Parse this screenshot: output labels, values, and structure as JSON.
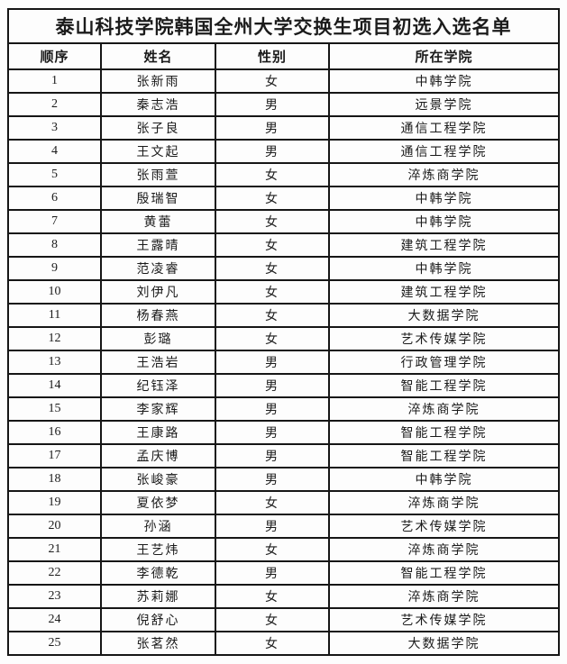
{
  "title": "泰山科技学院韩国全州大学交换生项目初选入选名单",
  "table": {
    "headers": [
      "顺序",
      "姓名",
      "性别",
      "所在学院"
    ],
    "rows": [
      [
        "1",
        "张新雨",
        "女",
        "中韩学院"
      ],
      [
        "2",
        "秦志浩",
        "男",
        "远景学院"
      ],
      [
        "3",
        "张子良",
        "男",
        "通信工程学院"
      ],
      [
        "4",
        "王文起",
        "男",
        "通信工程学院"
      ],
      [
        "5",
        "张雨萱",
        "女",
        "淬炼商学院"
      ],
      [
        "6",
        "殷瑞智",
        "女",
        "中韩学院"
      ],
      [
        "7",
        "黄蕾",
        "女",
        "中韩学院"
      ],
      [
        "8",
        "王露晴",
        "女",
        "建筑工程学院"
      ],
      [
        "9",
        "范凌睿",
        "女",
        "中韩学院"
      ],
      [
        "10",
        "刘伊凡",
        "女",
        "建筑工程学院"
      ],
      [
        "11",
        "杨春燕",
        "女",
        "大数据学院"
      ],
      [
        "12",
        "彭璐",
        "女",
        "艺术传媒学院"
      ],
      [
        "13",
        "王浩岩",
        "男",
        "行政管理学院"
      ],
      [
        "14",
        "纪钰泽",
        "男",
        "智能工程学院"
      ],
      [
        "15",
        "李家辉",
        "男",
        "淬炼商学院"
      ],
      [
        "16",
        "王康路",
        "男",
        "智能工程学院"
      ],
      [
        "17",
        "孟庆博",
        "男",
        "智能工程学院"
      ],
      [
        "18",
        "张峻豪",
        "男",
        "中韩学院"
      ],
      [
        "19",
        "夏依梦",
        "女",
        "淬炼商学院"
      ],
      [
        "20",
        "孙涵",
        "男",
        "艺术传媒学院"
      ],
      [
        "21",
        "王艺炜",
        "女",
        "淬炼商学院"
      ],
      [
        "22",
        "李德乾",
        "男",
        "智能工程学院"
      ],
      [
        "23",
        "苏莉娜",
        "女",
        "淬炼商学院"
      ],
      [
        "24",
        "倪舒心",
        "女",
        "艺术传媒学院"
      ],
      [
        "25",
        "张茗然",
        "女",
        "大数据学院"
      ]
    ]
  },
  "colors": {
    "border": "#161616",
    "text": "#1b1b1b",
    "background": "#fdfdfd"
  }
}
